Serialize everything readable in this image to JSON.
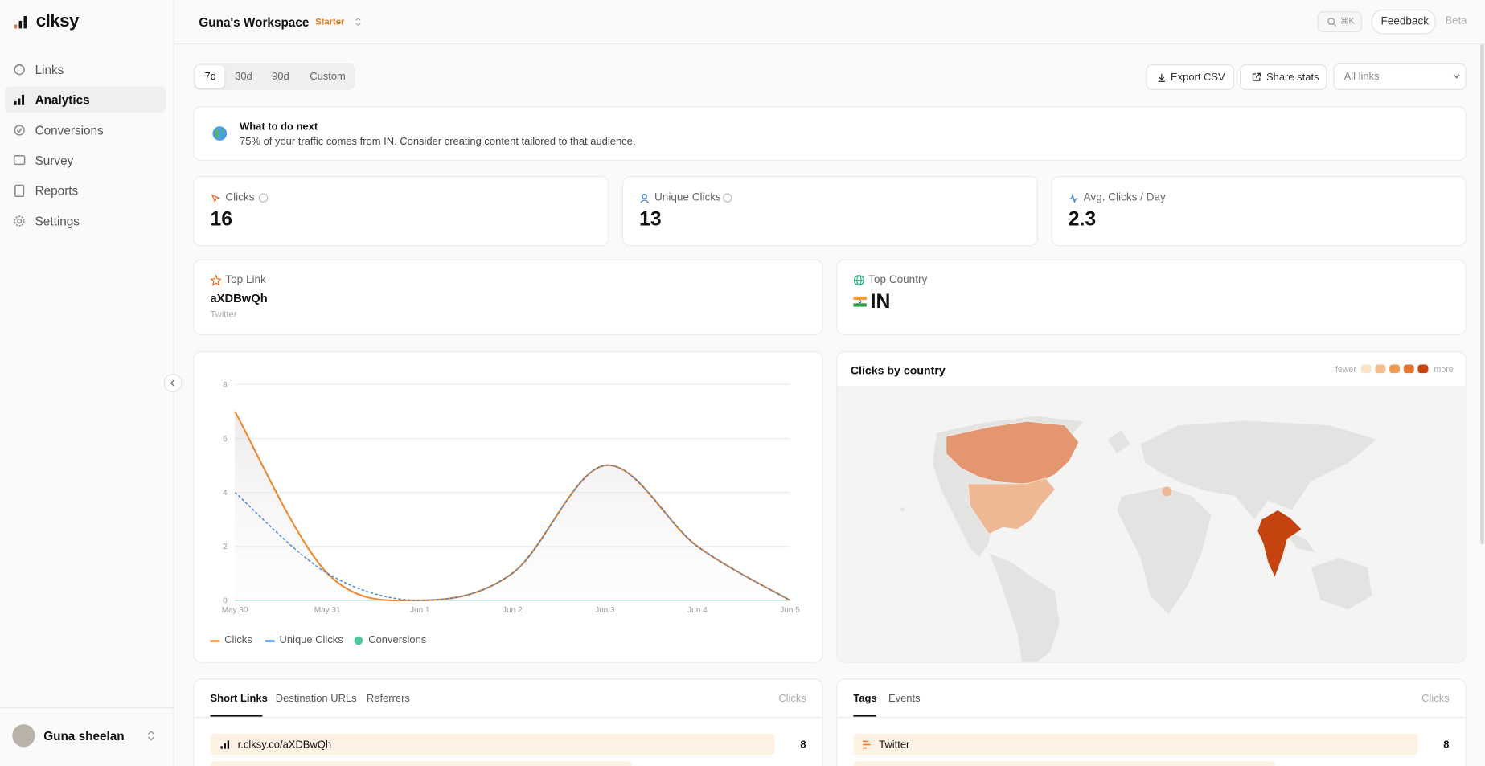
{
  "sidebar": {
    "logo": "clksy",
    "nav": [
      "Links",
      "Analytics",
      "Conversions",
      "Survey",
      "Reports",
      "Settings"
    ],
    "user": "Guna sheelan"
  },
  "header": {
    "workspace": "Guna's Workspace",
    "plan": "Starter",
    "search_hint": "⌘K",
    "feedback": "Feedback",
    "beta": "Beta"
  },
  "toolbar": {
    "ranges": [
      "7d",
      "30d",
      "90d",
      "Custom"
    ],
    "export": "Export CSV",
    "share": "Share stats",
    "filter": "All links"
  },
  "tip": {
    "title": "What to do next",
    "text": "75% of your traffic comes from IN. Consider creating content tailored to that audience."
  },
  "stats": [
    {
      "label": "Clicks",
      "value": "16"
    },
    {
      "label": "Unique Clicks",
      "value": "13"
    },
    {
      "label": "Avg. Clicks / Day",
      "value": "2.3"
    }
  ],
  "top_link": {
    "label": "Top Link",
    "value": "aXDBwQh",
    "source": "Twitter"
  },
  "top_country": {
    "label": "Top Country",
    "value": "IN"
  },
  "chart_data": {
    "type": "line",
    "categories": [
      "May 30",
      "May 31",
      "Jun 1",
      "Jun 2",
      "Jun 3",
      "Jun 4",
      "Jun 5"
    ],
    "series": [
      {
        "name": "Clicks",
        "color": "#f07c1a",
        "values": [
          7,
          1,
          0,
          1,
          5,
          2,
          0
        ]
      },
      {
        "name": "Unique Clicks",
        "color": "#3b82d6",
        "values": [
          4,
          1,
          0,
          1,
          5,
          2,
          0
        ]
      },
      {
        "name": "Conversions",
        "color": "#4cc99a",
        "values": [
          0,
          0,
          0,
          0,
          0,
          0,
          0
        ]
      }
    ],
    "ylim": [
      0,
      8
    ],
    "yticks": [
      0,
      2,
      4,
      6,
      8
    ],
    "grid": true,
    "legend": "bottom"
  },
  "map": {
    "title": "Clicks by country",
    "legend_low": "fewer",
    "legend_high": "more",
    "scale_colors": [
      "#fbe3c8",
      "#f5bd8a",
      "#ef9a55",
      "#e8732b",
      "#c5430f"
    ]
  },
  "links_table": {
    "tabs": [
      "Short Links",
      "Destination URLs",
      "Referrers"
    ],
    "metric": "Clicks",
    "rows": [
      [
        "r.clksy.co/aXDBwQh",
        "8"
      ]
    ]
  },
  "tags_table": {
    "tabs": [
      "Tags",
      "Events"
    ],
    "metric": "Clicks",
    "rows": [
      [
        "Twitter",
        "8"
      ]
    ]
  }
}
